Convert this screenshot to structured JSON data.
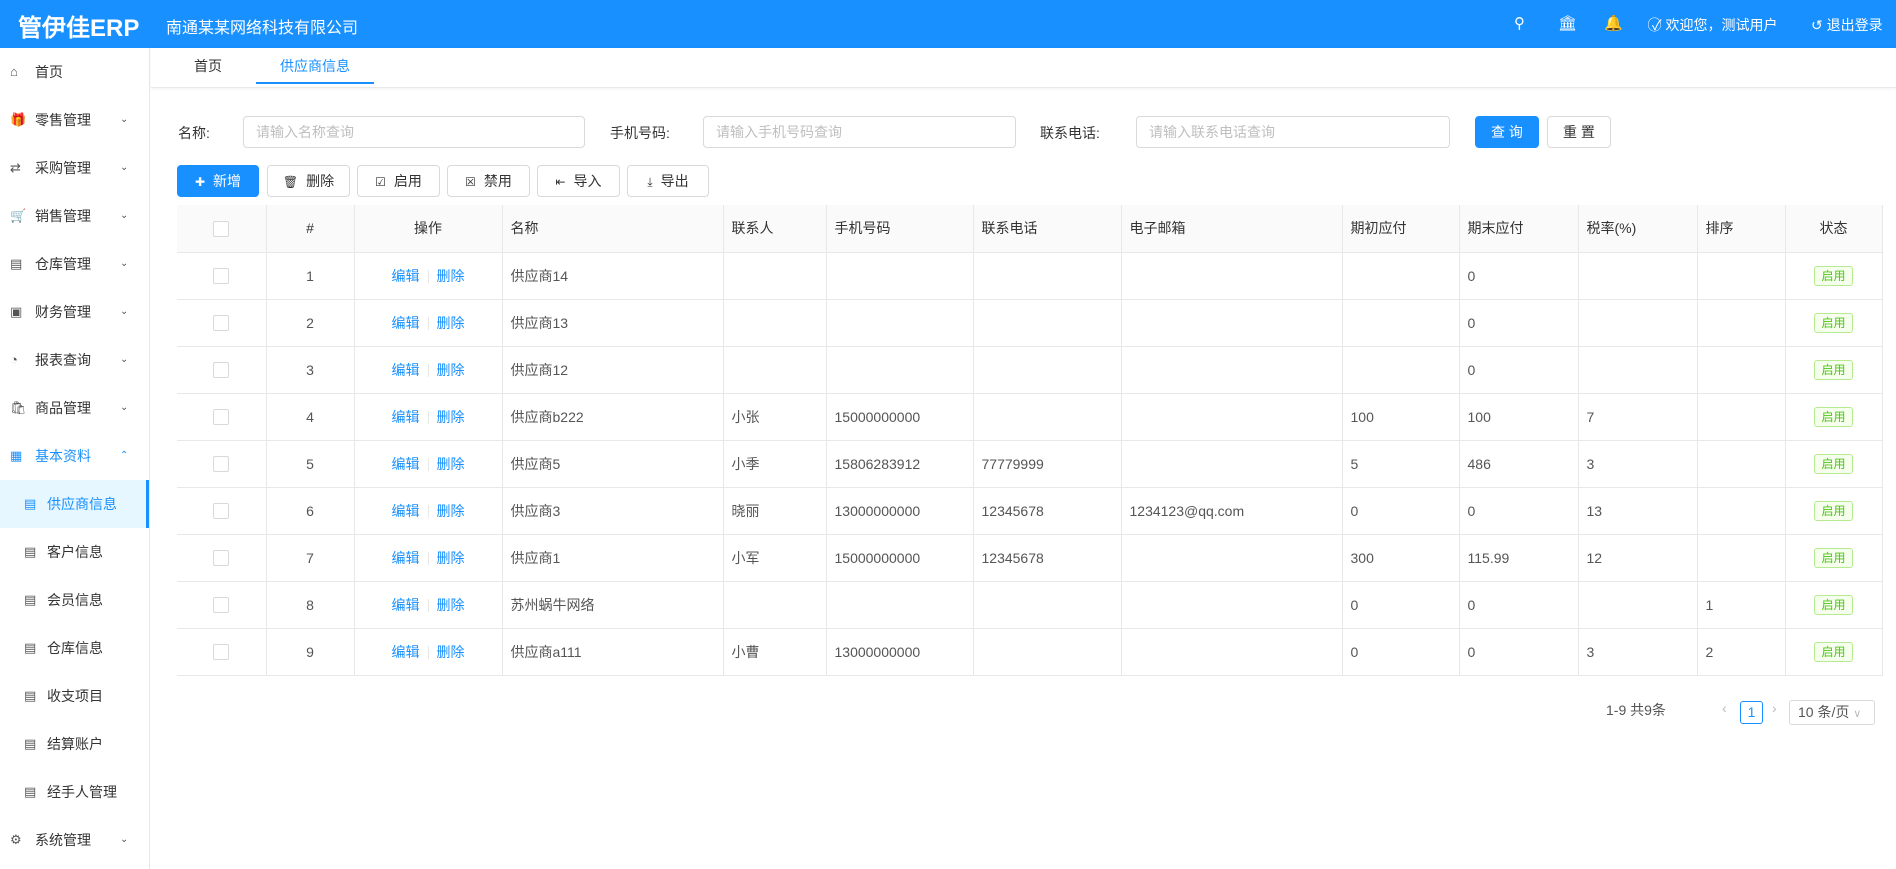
{
  "header": {
    "logo": "管伊佳ERP",
    "company": "南通某某网络科技有限公司",
    "welcome": "欢迎您，测试用户",
    "logout": "退出登录"
  },
  "sidebar": {
    "items": [
      {
        "label": "首页",
        "icon": "home-icon"
      },
      {
        "label": "零售管理",
        "icon": "gift-icon"
      },
      {
        "label": "采购管理",
        "icon": "swap-icon"
      },
      {
        "label": "销售管理",
        "icon": "cart-icon"
      },
      {
        "label": "仓库管理",
        "icon": "warehouse-icon"
      },
      {
        "label": "财务管理",
        "icon": "finance-icon"
      },
      {
        "label": "报表查询",
        "icon": "pie-chart-icon"
      },
      {
        "label": "商品管理",
        "icon": "shopping-bag-icon"
      },
      {
        "label": "基本资料",
        "icon": "appstore-icon"
      }
    ],
    "sub": [
      "供应商信息",
      "客户信息",
      "会员信息",
      "仓库信息",
      "收支项目",
      "结算账户",
      "经手人管理"
    ],
    "last": {
      "label": "系统管理",
      "icon": "setting-icon"
    }
  },
  "tabs": [
    "首页",
    "供应商信息"
  ],
  "filters": {
    "name_label": "名称:",
    "name_placeholder": "请输入名称查询",
    "phone_label": "手机号码:",
    "phone_placeholder": "请输入手机号码查询",
    "tel_label": "联系电话:",
    "tel_placeholder": "请输入联系电话查询",
    "search": "查 询",
    "reset": "重 置"
  },
  "toolbar": {
    "add": "新增",
    "delete": "删除",
    "enable": "启用",
    "disable": "禁用",
    "import": "导入",
    "export": "导出"
  },
  "table": {
    "headers": [
      "#",
      "操作",
      "名称",
      "联系人",
      "手机号码",
      "联系电话",
      "电子邮箱",
      "期初应付",
      "期末应付",
      "税率(%)",
      "排序",
      "状态"
    ],
    "edit": "编辑",
    "del": "删除",
    "rows": [
      [
        "1",
        "供应商14",
        "",
        "",
        "",
        "",
        "",
        "0",
        "",
        "",
        "启用"
      ],
      [
        "2",
        "供应商13",
        "",
        "",
        "",
        "",
        "",
        "0",
        "",
        "",
        "启用"
      ],
      [
        "3",
        "供应商12",
        "",
        "",
        "",
        "",
        "",
        "0",
        "",
        "",
        "启用"
      ],
      [
        "4",
        "供应商b222",
        "小张",
        "15000000000",
        "",
        "",
        "100",
        "100",
        "7",
        "",
        "启用"
      ],
      [
        "5",
        "供应商5",
        "小季",
        "15806283912",
        "77779999",
        "",
        "5",
        "486",
        "3",
        "",
        "启用"
      ],
      [
        "6",
        "供应商3",
        "晓丽",
        "13000000000",
        "12345678",
        "1234123@qq.com",
        "0",
        "0",
        "13",
        "",
        "启用"
      ],
      [
        "7",
        "供应商1",
        "小军",
        "15000000000",
        "12345678",
        "",
        "300",
        "115.99",
        "12",
        "",
        "启用"
      ],
      [
        "8",
        "苏州蜗牛网络",
        "",
        "",
        "",
        "",
        "0",
        "0",
        "",
        "1",
        "启用"
      ],
      [
        "9",
        "供应商a111",
        "小曹",
        "13000000000",
        "",
        "",
        "0",
        "0",
        "3",
        "2",
        "启用"
      ]
    ]
  },
  "pagination": {
    "total": "1-9 共9条",
    "page": "1",
    "size": "10 条/页"
  },
  "colors": {
    "primary": "#1890ff",
    "success": "#52c41a"
  }
}
